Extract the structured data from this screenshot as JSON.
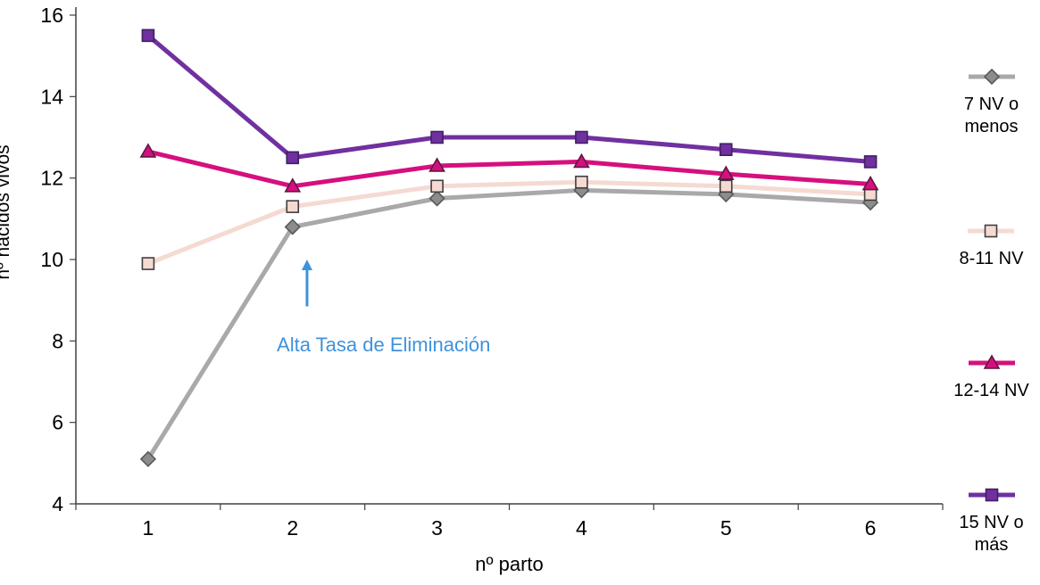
{
  "chart_data": {
    "type": "line",
    "title": "",
    "xlabel": "nº parto",
    "ylabel": "nº nacidos vivos",
    "x": [
      1,
      2,
      3,
      4,
      5,
      6
    ],
    "ylim": [
      4,
      16
    ],
    "ytick_step": 2,
    "grid": false,
    "legend_position": "right",
    "series": [
      {
        "name": "7 NV o menos",
        "values": [
          5.1,
          10.8,
          11.5,
          11.7,
          11.6,
          11.4
        ],
        "color": "#a9a9a9",
        "marker": "diamond",
        "marker_fill": "#8c8c8c",
        "marker_border": "#5a5a5a"
      },
      {
        "name": "8-11 NV",
        "values": [
          9.9,
          11.3,
          11.8,
          11.9,
          11.8,
          11.6
        ],
        "color": "#f5dad2",
        "marker": "square",
        "marker_fill": "#f5dad2",
        "marker_border": "#3f3f3f"
      },
      {
        "name": "12-14 NV",
        "values": [
          12.65,
          11.8,
          12.3,
          12.4,
          12.1,
          11.85
        ],
        "color": "#d60f7e",
        "marker": "triangle",
        "marker_fill": "#d60f7e",
        "marker_border": "#5e1742"
      },
      {
        "name": "15 NV o más",
        "values": [
          15.5,
          12.5,
          13.0,
          13.0,
          12.7,
          12.4
        ],
        "color": "#7030a0",
        "marker": "square",
        "marker_fill": "#7030a0",
        "marker_border": "#402060"
      }
    ],
    "annotation": {
      "text": "Alta Tasa de Eliminación",
      "color": "#3f92dc",
      "arrow_x": 2.1,
      "arrow_tip_y": 10.0,
      "arrow_tail_y": 8.85,
      "text_x": 2.63,
      "text_y": 7.75
    },
    "axis_color": "#404040"
  }
}
